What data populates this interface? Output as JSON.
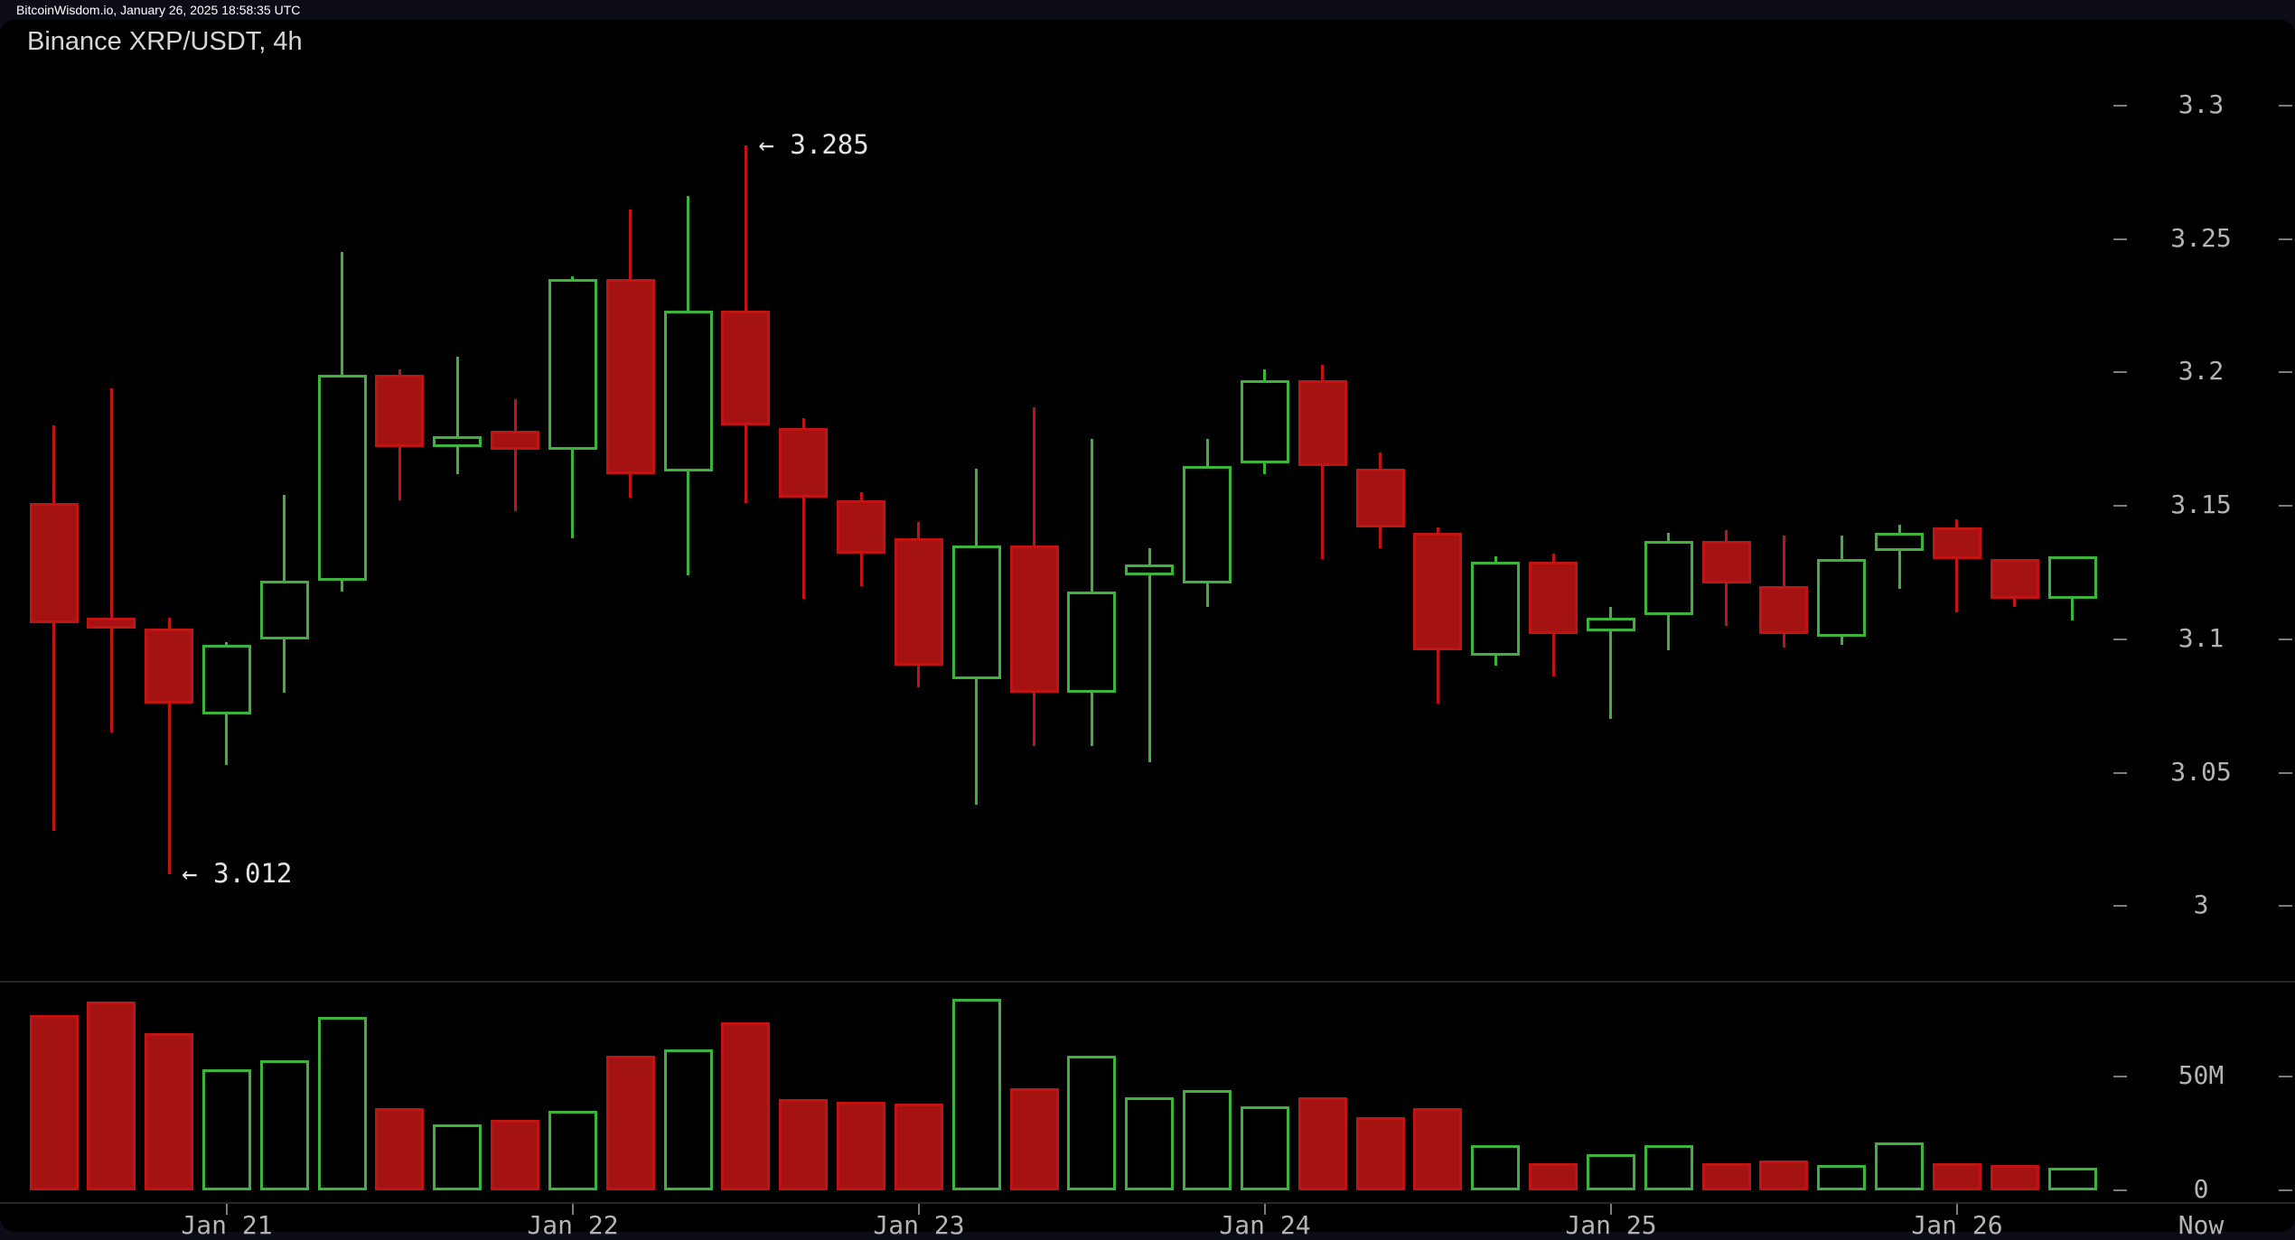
{
  "topbar": {
    "text": "BitcoinWisdom.io, January 26, 2025 18:58:35 UTC"
  },
  "chart": {
    "title": "Binance XRP/USDT, 4h"
  },
  "annotations": {
    "high_label": "← 3.285",
    "low_label": "← 3.012"
  },
  "price_axis": {
    "ticks": [
      "3.3",
      "3.25",
      "3.2",
      "3.15",
      "3.1",
      "3.05",
      "3"
    ]
  },
  "volume_axis": {
    "ticks": [
      "50M",
      "0"
    ]
  },
  "time_axis": {
    "labels": [
      "Jan 21",
      "Jan 22",
      "Jan 23",
      "Jan 24",
      "Jan 25",
      "Jan 26"
    ],
    "now_label": "Now"
  },
  "colors": {
    "background": "#000000",
    "frame": "#0c0c17",
    "up": "#3cb43c",
    "down_fill": "#a51212",
    "down_stroke": "#c01414",
    "axis_text": "#b4b4b4",
    "title_text": "#d6d6d6",
    "annotation_text": "#e3e3e3",
    "grid_line": "#262626",
    "tick_mark": "#7d7d7d"
  },
  "chart_data": {
    "type": "candlestick+volume",
    "title": "Binance XRP/USDT, 4h",
    "exchange": "Binance",
    "pair": "XRP/USDT",
    "interval": "4h",
    "price_axis_range": [
      3.0,
      3.3
    ],
    "volume_axis_ticks_M": [
      0,
      50
    ],
    "annotated_high": 3.285,
    "annotated_low": 3.012,
    "annotated_high_candle": 12,
    "annotated_low_candle": 2,
    "day_tick_indices": [
      3,
      9,
      15,
      21,
      27,
      33
    ],
    "day_tick_labels": [
      "Jan 21",
      "Jan 22",
      "Jan 23",
      "Jan 24",
      "Jan 25",
      "Jan 26"
    ],
    "candles": [
      {
        "o": 3.151,
        "h": 3.18,
        "l": 3.028,
        "c": 3.106,
        "v": 77
      },
      {
        "o": 3.108,
        "h": 3.194,
        "l": 3.065,
        "c": 3.104,
        "v": 83
      },
      {
        "o": 3.104,
        "h": 3.108,
        "l": 3.012,
        "c": 3.076,
        "v": 69
      },
      {
        "o": 3.072,
        "h": 3.099,
        "l": 3.053,
        "c": 3.098,
        "v": 53
      },
      {
        "o": 3.1,
        "h": 3.154,
        "l": 3.08,
        "c": 3.122,
        "v": 57
      },
      {
        "o": 3.122,
        "h": 3.245,
        "l": 3.118,
        "c": 3.199,
        "v": 76
      },
      {
        "o": 3.199,
        "h": 3.201,
        "l": 3.152,
        "c": 3.172,
        "v": 36
      },
      {
        "o": 3.172,
        "h": 3.206,
        "l": 3.162,
        "c": 3.176,
        "v": 29
      },
      {
        "o": 3.178,
        "h": 3.19,
        "l": 3.148,
        "c": 3.171,
        "v": 31
      },
      {
        "o": 3.171,
        "h": 3.236,
        "l": 3.138,
        "c": 3.235,
        "v": 35
      },
      {
        "o": 3.235,
        "h": 3.261,
        "l": 3.153,
        "c": 3.162,
        "v": 59
      },
      {
        "o": 3.163,
        "h": 3.266,
        "l": 3.124,
        "c": 3.223,
        "v": 62
      },
      {
        "o": 3.223,
        "h": 3.285,
        "l": 3.151,
        "c": 3.18,
        "v": 74
      },
      {
        "o": 3.179,
        "h": 3.183,
        "l": 3.115,
        "c": 3.153,
        "v": 40
      },
      {
        "o": 3.152,
        "h": 3.155,
        "l": 3.12,
        "c": 3.132,
        "v": 39
      },
      {
        "o": 3.138,
        "h": 3.144,
        "l": 3.082,
        "c": 3.09,
        "v": 38
      },
      {
        "o": 3.085,
        "h": 3.164,
        "l": 3.038,
        "c": 3.135,
        "v": 84
      },
      {
        "o": 3.135,
        "h": 3.187,
        "l": 3.06,
        "c": 3.08,
        "v": 45
      },
      {
        "o": 3.08,
        "h": 3.175,
        "l": 3.06,
        "c": 3.118,
        "v": 59
      },
      {
        "o": 3.124,
        "h": 3.134,
        "l": 3.054,
        "c": 3.128,
        "v": 41
      },
      {
        "o": 3.121,
        "h": 3.175,
        "l": 3.112,
        "c": 3.165,
        "v": 44
      },
      {
        "o": 3.166,
        "h": 3.201,
        "l": 3.162,
        "c": 3.197,
        "v": 37
      },
      {
        "o": 3.197,
        "h": 3.203,
        "l": 3.13,
        "c": 3.165,
        "v": 41
      },
      {
        "o": 3.164,
        "h": 3.17,
        "l": 3.134,
        "c": 3.142,
        "v": 32
      },
      {
        "o": 3.14,
        "h": 3.142,
        "l": 3.076,
        "c": 3.096,
        "v": 36
      },
      {
        "o": 3.094,
        "h": 3.131,
        "l": 3.09,
        "c": 3.129,
        "v": 20
      },
      {
        "o": 3.129,
        "h": 3.132,
        "l": 3.086,
        "c": 3.102,
        "v": 12
      },
      {
        "o": 3.103,
        "h": 3.112,
        "l": 3.07,
        "c": 3.108,
        "v": 16
      },
      {
        "o": 3.109,
        "h": 3.14,
        "l": 3.096,
        "c": 3.137,
        "v": 20
      },
      {
        "o": 3.137,
        "h": 3.141,
        "l": 3.105,
        "c": 3.121,
        "v": 12
      },
      {
        "o": 3.12,
        "h": 3.139,
        "l": 3.097,
        "c": 3.102,
        "v": 13
      },
      {
        "o": 3.101,
        "h": 3.139,
        "l": 3.098,
        "c": 3.13,
        "v": 11
      },
      {
        "o": 3.133,
        "h": 3.143,
        "l": 3.119,
        "c": 3.14,
        "v": 21
      },
      {
        "o": 3.142,
        "h": 3.145,
        "l": 3.11,
        "c": 3.13,
        "v": 12
      },
      {
        "o": 3.13,
        "h": 3.13,
        "l": 3.112,
        "c": 3.115,
        "v": 11
      },
      {
        "o": 3.115,
        "h": 3.131,
        "l": 3.107,
        "c": 3.131,
        "v": 10
      }
    ],
    "volume_unit": "M (millions)",
    "legend_position": "none",
    "grid": "off"
  }
}
